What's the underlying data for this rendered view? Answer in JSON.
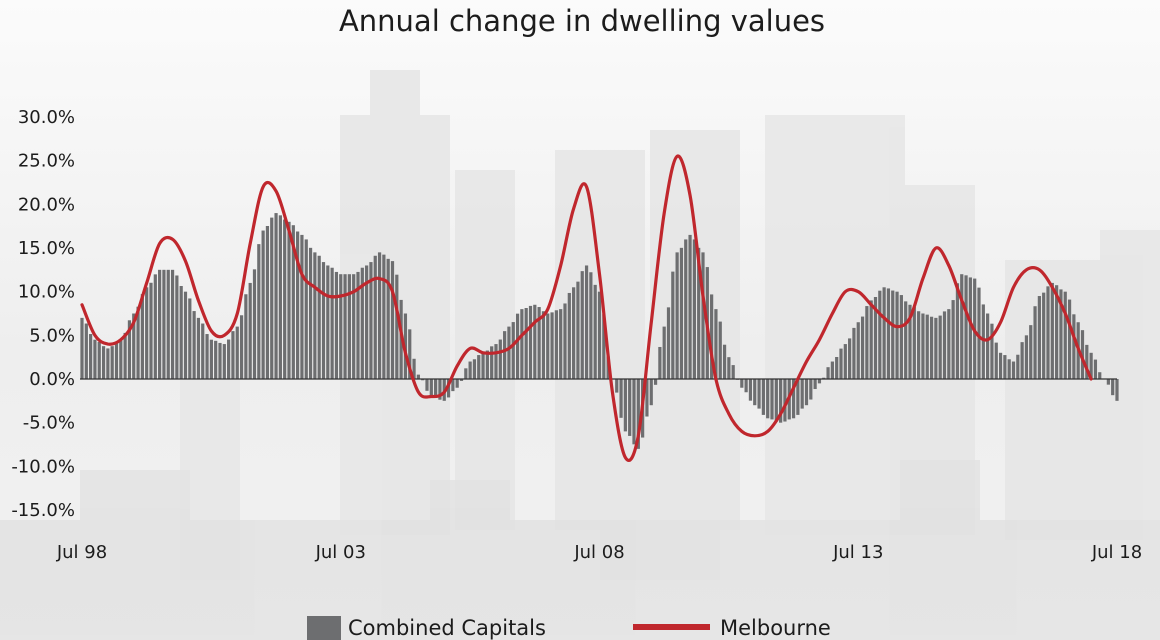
{
  "chart_data": {
    "type": "bar+line",
    "title": "Annual change in dwelling values",
    "xlabel": "",
    "ylabel": "",
    "ylim": [
      -15,
      30
    ],
    "y_ticks": [
      30,
      25,
      20,
      15,
      10,
      5,
      0,
      -5,
      -10,
      -15
    ],
    "y_tick_labels": [
      "30.0%",
      "25.0%",
      "20.0%",
      "15.0%",
      "10.0%",
      "5.0%",
      "0.0%",
      "-5.0%",
      "-10.0%",
      "-15.0%"
    ],
    "x_range": [
      "1998-07",
      "2018-07"
    ],
    "x_ticks": [
      "1998-07",
      "2003-07",
      "2008-07",
      "2013-07",
      "2018-07"
    ],
    "x_tick_labels": [
      "Jul 98",
      "Jul 03",
      "Jul 08",
      "Jul 13",
      "Jul 18"
    ],
    "legend_position": "bottom-center",
    "series": [
      {
        "name": "Combined Capitals",
        "kind": "bar",
        "color": "#6d6e70",
        "frequency": "monthly",
        "points": [
          [
            "1998-07",
            7.0
          ],
          [
            "1998-10",
            4.5
          ],
          [
            "1999-01",
            3.5
          ],
          [
            "1999-04",
            4.5
          ],
          [
            "1999-07",
            7.5
          ],
          [
            "1999-10",
            10.5
          ],
          [
            "2000-01",
            12.5
          ],
          [
            "2000-04",
            12.5
          ],
          [
            "2000-07",
            10.0
          ],
          [
            "2000-10",
            7.0
          ],
          [
            "2001-01",
            4.5
          ],
          [
            "2001-04",
            4.0
          ],
          [
            "2001-07",
            6.0
          ],
          [
            "2001-10",
            11.0
          ],
          [
            "2002-01",
            17.0
          ],
          [
            "2002-04",
            19.0
          ],
          [
            "2002-07",
            18.0
          ],
          [
            "2002-10",
            16.5
          ],
          [
            "2003-01",
            14.5
          ],
          [
            "2003-04",
            13.0
          ],
          [
            "2003-07",
            12.0
          ],
          [
            "2003-10",
            12.0
          ],
          [
            "2004-01",
            13.0
          ],
          [
            "2004-04",
            14.5
          ],
          [
            "2004-07",
            13.5
          ],
          [
            "2004-10",
            7.5
          ],
          [
            "2005-01",
            0.5
          ],
          [
            "2005-04",
            -2.0
          ],
          [
            "2005-07",
            -2.5
          ],
          [
            "2005-10",
            -1.0
          ],
          [
            "2006-01",
            2.0
          ],
          [
            "2006-04",
            3.0
          ],
          [
            "2006-07",
            4.0
          ],
          [
            "2006-10",
            6.0
          ],
          [
            "2007-01",
            8.0
          ],
          [
            "2007-04",
            8.5
          ],
          [
            "2007-07",
            7.5
          ],
          [
            "2007-10",
            8.0
          ],
          [
            "2008-01",
            10.5
          ],
          [
            "2008-04",
            13.0
          ],
          [
            "2008-07",
            10.0
          ],
          [
            "2008-10",
            0.0
          ],
          [
            "2009-01",
            -6.0
          ],
          [
            "2009-04",
            -8.0
          ],
          [
            "2009-07",
            -3.0
          ],
          [
            "2009-10",
            6.0
          ],
          [
            "2010-01",
            14.5
          ],
          [
            "2010-04",
            16.5
          ],
          [
            "2010-07",
            14.5
          ],
          [
            "2010-10",
            8.0
          ],
          [
            "2011-01",
            2.5
          ],
          [
            "2011-04",
            -1.0
          ],
          [
            "2011-07",
            -3.0
          ],
          [
            "2011-10",
            -4.5
          ],
          [
            "2012-01",
            -5.0
          ],
          [
            "2012-04",
            -4.5
          ],
          [
            "2012-07",
            -3.0
          ],
          [
            "2012-10",
            -0.5
          ],
          [
            "2013-01",
            2.0
          ],
          [
            "2013-04",
            4.0
          ],
          [
            "2013-07",
            6.5
          ],
          [
            "2013-10",
            9.0
          ],
          [
            "2014-01",
            10.5
          ],
          [
            "2014-04",
            10.0
          ],
          [
            "2014-07",
            8.5
          ],
          [
            "2014-10",
            7.5
          ],
          [
            "2015-01",
            7.0
          ],
          [
            "2015-04",
            8.0
          ],
          [
            "2015-07",
            12.0
          ],
          [
            "2015-10",
            11.5
          ],
          [
            "2016-01",
            7.5
          ],
          [
            "2016-04",
            3.0
          ],
          [
            "2016-07",
            2.0
          ],
          [
            "2016-10",
            5.0
          ],
          [
            "2017-01",
            9.5
          ],
          [
            "2017-04",
            11.0
          ],
          [
            "2017-07",
            10.0
          ],
          [
            "2017-10",
            6.5
          ],
          [
            "2018-01",
            3.0
          ],
          [
            "2018-04",
            0.0
          ],
          [
            "2018-07",
            -2.5
          ]
        ]
      },
      {
        "name": "Melbourne",
        "kind": "line",
        "color": "#c0272d",
        "points": [
          [
            "1998-07",
            8.5
          ],
          [
            "1998-10",
            5.0
          ],
          [
            "1999-01",
            4.0
          ],
          [
            "1999-04",
            4.5
          ],
          [
            "1999-07",
            6.5
          ],
          [
            "1999-10",
            11.0
          ],
          [
            "2000-01",
            15.5
          ],
          [
            "2000-04",
            16.0
          ],
          [
            "2000-07",
            13.5
          ],
          [
            "2000-10",
            9.0
          ],
          [
            "2001-01",
            5.5
          ],
          [
            "2001-04",
            5.0
          ],
          [
            "2001-07",
            7.5
          ],
          [
            "2001-10",
            15.5
          ],
          [
            "2002-01",
            22.0
          ],
          [
            "2002-04",
            21.5
          ],
          [
            "2002-07",
            17.0
          ],
          [
            "2002-10",
            12.0
          ],
          [
            "2003-01",
            10.5
          ],
          [
            "2003-04",
            9.5
          ],
          [
            "2003-07",
            9.5
          ],
          [
            "2003-10",
            10.0
          ],
          [
            "2004-01",
            11.0
          ],
          [
            "2004-04",
            11.5
          ],
          [
            "2004-07",
            10.0
          ],
          [
            "2004-10",
            3.0
          ],
          [
            "2005-01",
            -1.5
          ],
          [
            "2005-04",
            -2.0
          ],
          [
            "2005-07",
            -1.5
          ],
          [
            "2005-10",
            1.5
          ],
          [
            "2006-01",
            3.5
          ],
          [
            "2006-04",
            3.0
          ],
          [
            "2006-07",
            3.0
          ],
          [
            "2006-10",
            3.5
          ],
          [
            "2007-01",
            5.0
          ],
          [
            "2007-04",
            6.5
          ],
          [
            "2007-07",
            8.0
          ],
          [
            "2007-10",
            13.0
          ],
          [
            "2008-01",
            19.5
          ],
          [
            "2008-04",
            22.0
          ],
          [
            "2008-07",
            12.0
          ],
          [
            "2008-10",
            -1.5
          ],
          [
            "2009-01",
            -9.0
          ],
          [
            "2009-04",
            -6.5
          ],
          [
            "2009-07",
            6.5
          ],
          [
            "2009-10",
            19.0
          ],
          [
            "2010-01",
            25.5
          ],
          [
            "2010-04",
            21.0
          ],
          [
            "2010-07",
            9.5
          ],
          [
            "2010-10",
            0.0
          ],
          [
            "2011-01",
            -4.0
          ],
          [
            "2011-04",
            -6.0
          ],
          [
            "2011-07",
            -6.5
          ],
          [
            "2011-10",
            -6.0
          ],
          [
            "2012-01",
            -4.0
          ],
          [
            "2012-04",
            -1.0
          ],
          [
            "2012-07",
            2.0
          ],
          [
            "2012-10",
            4.5
          ],
          [
            "2013-01",
            7.5
          ],
          [
            "2013-04",
            10.0
          ],
          [
            "2013-07",
            10.0
          ],
          [
            "2013-10",
            8.5
          ],
          [
            "2014-01",
            7.0
          ],
          [
            "2014-04",
            6.0
          ],
          [
            "2014-07",
            7.0
          ],
          [
            "2014-10",
            11.5
          ],
          [
            "2015-01",
            15.0
          ],
          [
            "2015-04",
            13.0
          ],
          [
            "2015-07",
            9.0
          ],
          [
            "2015-10",
            5.5
          ],
          [
            "2016-01",
            4.5
          ],
          [
            "2016-04",
            6.5
          ],
          [
            "2016-07",
            10.5
          ],
          [
            "2016-10",
            12.5
          ],
          [
            "2017-01",
            12.5
          ],
          [
            "2017-04",
            10.5
          ],
          [
            "2017-07",
            7.5
          ],
          [
            "2017-10",
            3.5
          ],
          [
            "2018-01",
            0.0
          ]
        ]
      }
    ]
  }
}
